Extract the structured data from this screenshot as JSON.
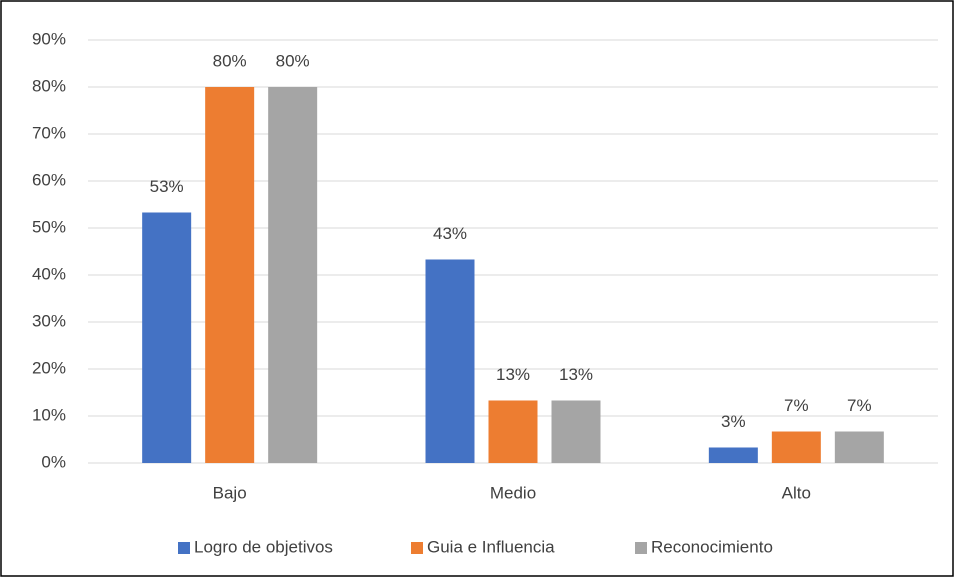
{
  "chart_data": {
    "type": "bar",
    "categories": [
      "Bajo",
      "Medio",
      "Alto"
    ],
    "series": [
      {
        "name": "Logro de objetivos",
        "color": "#4472c4",
        "values": [
          53.3,
          43.3,
          3.3
        ],
        "value_labels": [
          "53%",
          "43%",
          "3%"
        ]
      },
      {
        "name": "Guia e Influencia",
        "color": "#ed7d31",
        "values": [
          80,
          13.3,
          6.7
        ],
        "value_labels": [
          "80%",
          "13%",
          "7%"
        ]
      },
      {
        "name": "Reconocimiento",
        "color": "#a5a5a5",
        "values": [
          80,
          13.3,
          6.7
        ],
        "value_labels": [
          "80%",
          "13%",
          "7%"
        ]
      }
    ],
    "ylim": [
      0,
      90
    ],
    "yticks": [
      {
        "value": 0,
        "label": "0%"
      },
      {
        "value": 10,
        "label": "10%"
      },
      {
        "value": 20,
        "label": "20%"
      },
      {
        "value": 30,
        "label": "30%"
      },
      {
        "value": 40,
        "label": "40%"
      },
      {
        "value": 50,
        "label": "50%"
      },
      {
        "value": 60,
        "label": "60%"
      },
      {
        "value": 70,
        "label": "70%"
      },
      {
        "value": 80,
        "label": "80%"
      },
      {
        "value": 90,
        "label": "90%"
      }
    ],
    "grid": true,
    "legend": "bottom"
  }
}
